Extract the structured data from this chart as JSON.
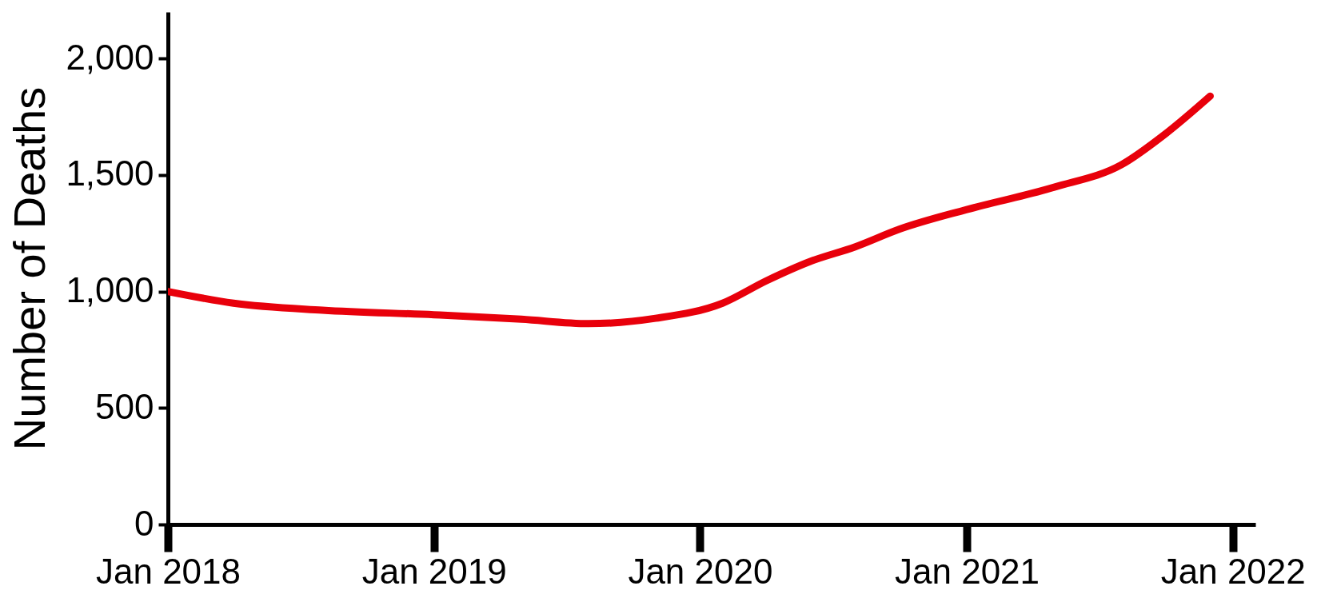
{
  "chart_data": {
    "type": "line",
    "ylabel": "Number of Deaths",
    "x": [
      "2018-01",
      "2018-04",
      "2018-08",
      "2019-01",
      "2019-05",
      "2019-08",
      "2019-11",
      "2020-02",
      "2020-04",
      "2020-06",
      "2020-08",
      "2020-10",
      "2021-01",
      "2021-05",
      "2021-08",
      "2021-10",
      "2021-12"
    ],
    "series": [
      {
        "color": "#e8000b",
        "values": [
          1000,
          950,
          920,
          900,
          881,
          862,
          885,
          950,
          1046,
          1130,
          1192,
          1268,
          1352,
          1448,
          1544,
          1678,
          1839
        ]
      }
    ],
    "xlim": [
      "2018-01",
      "2022-02"
    ],
    "xticks": [
      {
        "value": "2018-01",
        "label": "Jan 2018"
      },
      {
        "value": "2019-01",
        "label": "Jan 2019"
      },
      {
        "value": "2020-01",
        "label": "Jan 2020"
      },
      {
        "value": "2021-01",
        "label": "Jan 2021"
      },
      {
        "value": "2022-01",
        "label": "Jan 2022"
      }
    ],
    "ylim": [
      0,
      2200
    ],
    "yticks": [
      0,
      500,
      {
        "value": 1000,
        "label": "1,000"
      },
      {
        "value": 1500,
        "label": "1,500"
      },
      {
        "value": 2000,
        "label": "2,000"
      }
    ],
    "grid": false,
    "marker": "none",
    "line_style": "solid"
  }
}
